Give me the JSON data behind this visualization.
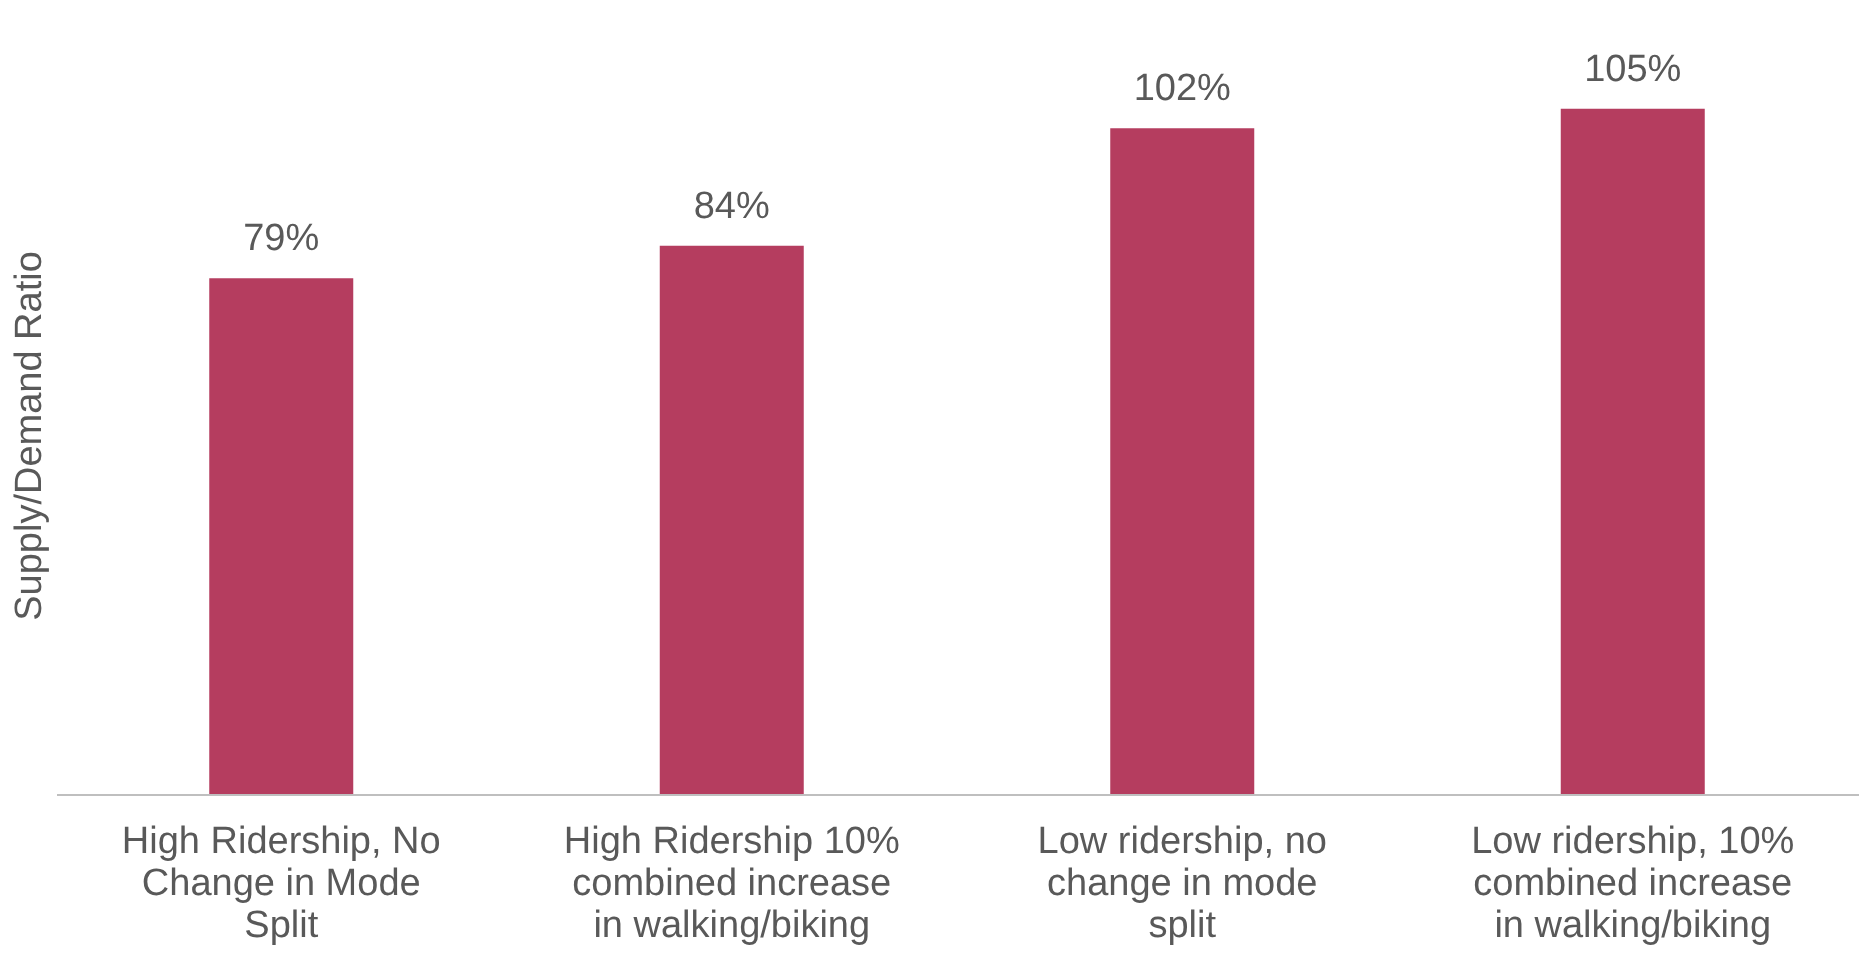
{
  "chart_data": {
    "type": "bar",
    "ylabel": "Supply/Demand Ratio",
    "categories": [
      "High Ridership, No Change in Mode Split",
      "High Ridership 10% combined increase in walking/biking",
      "Low ridership, no change in mode split",
      "Low ridership, 10% combined increase in walking/biking"
    ],
    "values": [
      79,
      84,
      102,
      105
    ],
    "value_labels": [
      "79%",
      "84%",
      "102%",
      "105%"
    ],
    "color": "#b53d5f",
    "grid": false,
    "tick_labels": "x"
  }
}
